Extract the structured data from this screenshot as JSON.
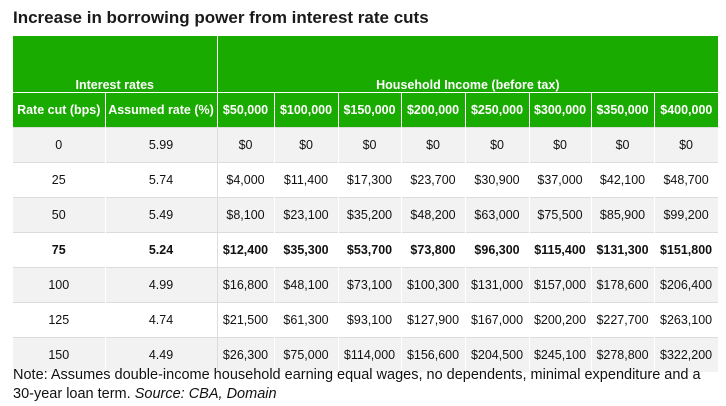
{
  "title": "Increase in borrowing power from interest rate cuts",
  "groups": {
    "interest_rates": "Interest rates",
    "household_income": "Household Income (before tax)"
  },
  "columns": [
    "Rate cut (bps)",
    "Assumed rate (%)",
    "$50,000",
    "$100,000",
    "$150,000",
    "$200,000",
    "$250,000",
    "$300,000",
    "$350,000",
    "$400,000"
  ],
  "rows": [
    [
      "0",
      "5.99",
      "$0",
      "$0",
      "$0",
      "$0",
      "$0",
      "$0",
      "$0",
      "$0"
    ],
    [
      "25",
      "5.74",
      "$4,000",
      "$11,400",
      "$17,300",
      "$23,700",
      "$30,900",
      "$37,000",
      "$42,100",
      "$48,700"
    ],
    [
      "50",
      "5.49",
      "$8,100",
      "$23,100",
      "$35,200",
      "$48,200",
      "$63,000",
      "$75,500",
      "$85,900",
      "$99,200"
    ],
    [
      "75",
      "5.24",
      "$12,400",
      "$35,300",
      "$53,700",
      "$73,800",
      "$96,300",
      "$115,400",
      "$131,300",
      "$151,800"
    ],
    [
      "100",
      "4.99",
      "$16,800",
      "$48,100",
      "$73,100",
      "$100,300",
      "$131,000",
      "$157,000",
      "$178,600",
      "$206,400"
    ],
    [
      "125",
      "4.74",
      "$21,500",
      "$61,300",
      "$93,100",
      "$127,900",
      "$167,000",
      "$200,200",
      "$227,700",
      "$263,100"
    ],
    [
      "150",
      "4.49",
      "$26,300",
      "$75,000",
      "$114,000",
      "$156,600",
      "$204,500",
      "$245,100",
      "$278,800",
      "$322,200"
    ]
  ],
  "highlighted_row": "75",
  "note": {
    "text": "Note: Assumes double-income household earning equal wages, no dependents, minimal expenditure and a 30-year loan term. ",
    "source": "Source: CBA, Domain"
  },
  "colors": {
    "header_green": "#1aab00",
    "stripe": "#f2f2f2"
  }
}
